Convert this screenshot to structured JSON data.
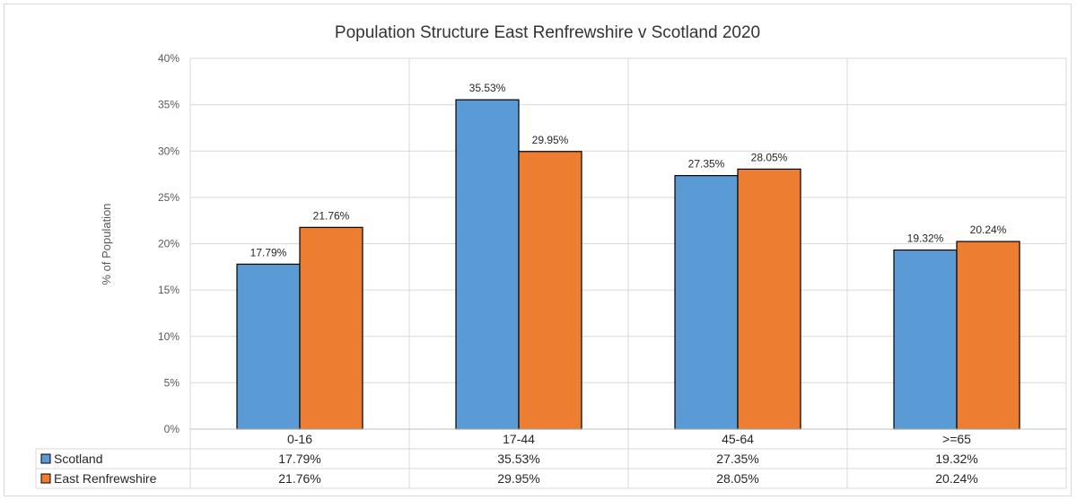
{
  "chart_data": {
    "type": "bar",
    "title": "Population Structure East Renfrewshire v Scotland 2020",
    "ylabel": "% of Population",
    "xlabel": "",
    "categories": [
      "0-16",
      "17-44",
      "45-64",
      ">=65"
    ],
    "ylim": [
      0,
      40
    ],
    "ytick_step": 5,
    "yticks": [
      "0%",
      "5%",
      "10%",
      "15%",
      "20%",
      "25%",
      "30%",
      "35%",
      "40%"
    ],
    "grid": true,
    "legend": "data-table",
    "series": [
      {
        "name": "Scotland",
        "color": "#5b9bd5",
        "values": [
          17.79,
          35.53,
          27.35,
          19.32
        ],
        "labels": [
          "17.79%",
          "35.53%",
          "27.35%",
          "19.32%"
        ]
      },
      {
        "name": "East Renfrewshire",
        "color": "#ed7d31",
        "values": [
          21.76,
          29.95,
          28.05,
          20.24
        ],
        "labels": [
          "21.76%",
          "29.95%",
          "28.05%",
          "20.24%"
        ]
      }
    ]
  }
}
